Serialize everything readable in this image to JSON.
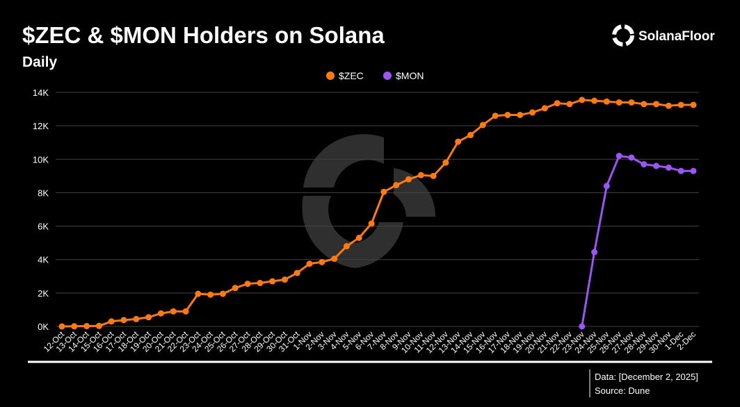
{
  "chart_data": {
    "type": "line",
    "title": "$ZEC & $MON Holders on Solana",
    "subtitle": "Daily",
    "brand": "SolanaFloor",
    "note": "Data: [December 2, 2025]",
    "source": "Source: Dune",
    "categories": [
      "12-Oct",
      "13-Oct",
      "14-Oct",
      "15-Oct",
      "16-Oct",
      "17-Oct",
      "18-Oct",
      "19-Oct",
      "20-Oct",
      "21-Oct",
      "22-Oct",
      "23-Oct",
      "24-Oct",
      "25-Oct",
      "26-Oct",
      "27-Oct",
      "28-Oct",
      "29-Oct",
      "30-Oct",
      "31-Oct",
      "1-Nov",
      "2-Nov",
      "3-Nov",
      "4-Nov",
      "5-Nov",
      "6-Nov",
      "7-Nov",
      "8-Nov",
      "9-Nov",
      "10-Nov",
      "11-Nov",
      "12-Nov",
      "13-Nov",
      "14-Nov",
      "15-Nov",
      "16-Nov",
      "17-Nov",
      "18-Nov",
      "19-Nov",
      "20-Nov",
      "21-Nov",
      "22-Nov",
      "23-Nov",
      "24-Nov",
      "25-Nov",
      "26-Nov",
      "27-Nov",
      "28-Nov",
      "29-Nov",
      "30-Nov",
      "1-Dec",
      "2-Dec"
    ],
    "series": [
      {
        "name": "$ZEC",
        "color": "#ff7a12",
        "values": [
          0,
          10,
          20,
          30,
          300,
          380,
          440,
          550,
          780,
          900,
          900,
          1950,
          1900,
          1950,
          2300,
          2550,
          2600,
          2700,
          2800,
          3200,
          3750,
          3850,
          4050,
          4800,
          5300,
          6150,
          8050,
          8450,
          8800,
          9050,
          9000,
          9800,
          11050,
          11450,
          12050,
          12600,
          12650,
          12650,
          12800,
          13050,
          13350,
          13300,
          13550,
          13500,
          13450,
          13400,
          13400,
          13300,
          13300,
          13200,
          13250,
          13250
        ]
      },
      {
        "name": "$MON",
        "color": "#9b55f5",
        "values": [
          null,
          null,
          null,
          null,
          null,
          null,
          null,
          null,
          null,
          null,
          null,
          null,
          null,
          null,
          null,
          null,
          null,
          null,
          null,
          null,
          null,
          null,
          null,
          null,
          null,
          null,
          null,
          null,
          null,
          null,
          null,
          null,
          null,
          null,
          null,
          null,
          null,
          null,
          null,
          null,
          null,
          null,
          0,
          4450,
          8400,
          10200,
          10100,
          9700,
          9600,
          9500,
          9300,
          9300
        ]
      }
    ],
    "ylim": [
      0,
      14000
    ],
    "yticks": [
      {
        "value": 0,
        "label": "0K"
      },
      {
        "value": 2000,
        "label": "2K"
      },
      {
        "value": 4000,
        "label": "4K"
      },
      {
        "value": 6000,
        "label": "6K"
      },
      {
        "value": 8000,
        "label": "8K"
      },
      {
        "value": 10000,
        "label": "10K"
      },
      {
        "value": 12000,
        "label": "12K"
      },
      {
        "value": 14000,
        "label": "14K"
      }
    ],
    "grid": true
  }
}
